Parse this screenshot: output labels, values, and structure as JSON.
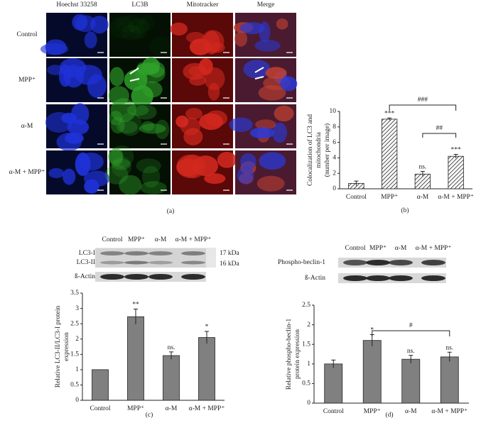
{
  "figure": {
    "panel_labels": [
      "(a)",
      "(b)",
      "(c)",
      "(d)"
    ],
    "microscopy": {
      "columns": [
        "Hoechst 33258",
        "LC3B",
        "Mitotracker",
        "Merge"
      ],
      "rows": [
        "Control",
        "MPP⁺",
        "α-M",
        "α-M + MPP⁺"
      ]
    },
    "blot_c": {
      "lanes": [
        "Control",
        "MPP⁺",
        "α-M",
        "α-M + MPP⁺"
      ],
      "bands": [
        "LC3-I",
        "LC3-II",
        "ß-Actin"
      ],
      "sizes": [
        "17 kDa",
        "16 kDa"
      ]
    },
    "blot_d": {
      "lanes": [
        "Control",
        "MPP⁺",
        "α-M",
        "α-M + MPP⁺"
      ],
      "bands": [
        "Phospho-beclin-1",
        "ß-Actin"
      ]
    }
  },
  "chart_data": [
    {
      "type": "bar",
      "ylabel": [
        "Colocalization of LC3 and",
        "mitochondria",
        "(number per image)"
      ],
      "categories": [
        "Control",
        "MPP⁺",
        "α-M",
        "α-M + MPP⁺"
      ],
      "values": [
        0.7,
        9.0,
        1.9,
        4.2
      ],
      "errors": [
        0.3,
        0.15,
        0.35,
        0.25
      ],
      "annotations": [
        null,
        "***",
        "ns.",
        "***"
      ],
      "brackets": [
        {
          "label": "###"
        },
        {
          "label": "##"
        }
      ],
      "color": "#ffffff",
      "hatch": true,
      "ylim": [
        0,
        10
      ],
      "yticks": [
        0,
        2,
        4,
        6,
        8,
        10
      ]
    },
    {
      "type": "bar",
      "ylabel": [
        "Relative LC3-II/LC3-I protein",
        "expression"
      ],
      "categories": [
        "Control",
        "MPP⁺",
        "α-M",
        "α-M + MPP⁺"
      ],
      "values": [
        1.0,
        2.73,
        1.46,
        2.05
      ],
      "errors": [
        0,
        0.25,
        0.12,
        0.2
      ],
      "annotations": [
        null,
        "**",
        "ns.",
        "*"
      ],
      "brackets": [],
      "color": "#808080",
      "hatch": false,
      "ylim": [
        0,
        3.5
      ],
      "yticks": [
        0,
        0.5,
        1,
        1.5,
        2,
        2.5,
        3,
        3.5
      ]
    },
    {
      "type": "bar",
      "ylabel": [
        "Relative phospho-beclin-1",
        "protein expression"
      ],
      "categories": [
        "Control",
        "MPP⁺",
        "α-M",
        "α-M + MPP⁺"
      ],
      "values": [
        1.0,
        1.6,
        1.12,
        1.18
      ],
      "errors": [
        0.1,
        0.15,
        0.1,
        0.12
      ],
      "annotations": [
        null,
        "*",
        "ns.",
        "ns."
      ],
      "brackets": [
        {
          "label": "#"
        }
      ],
      "color": "#808080",
      "hatch": false,
      "ylim": [
        0,
        2.5
      ],
      "yticks": [
        0,
        0.5,
        1,
        1.5,
        2,
        2.5
      ]
    }
  ]
}
